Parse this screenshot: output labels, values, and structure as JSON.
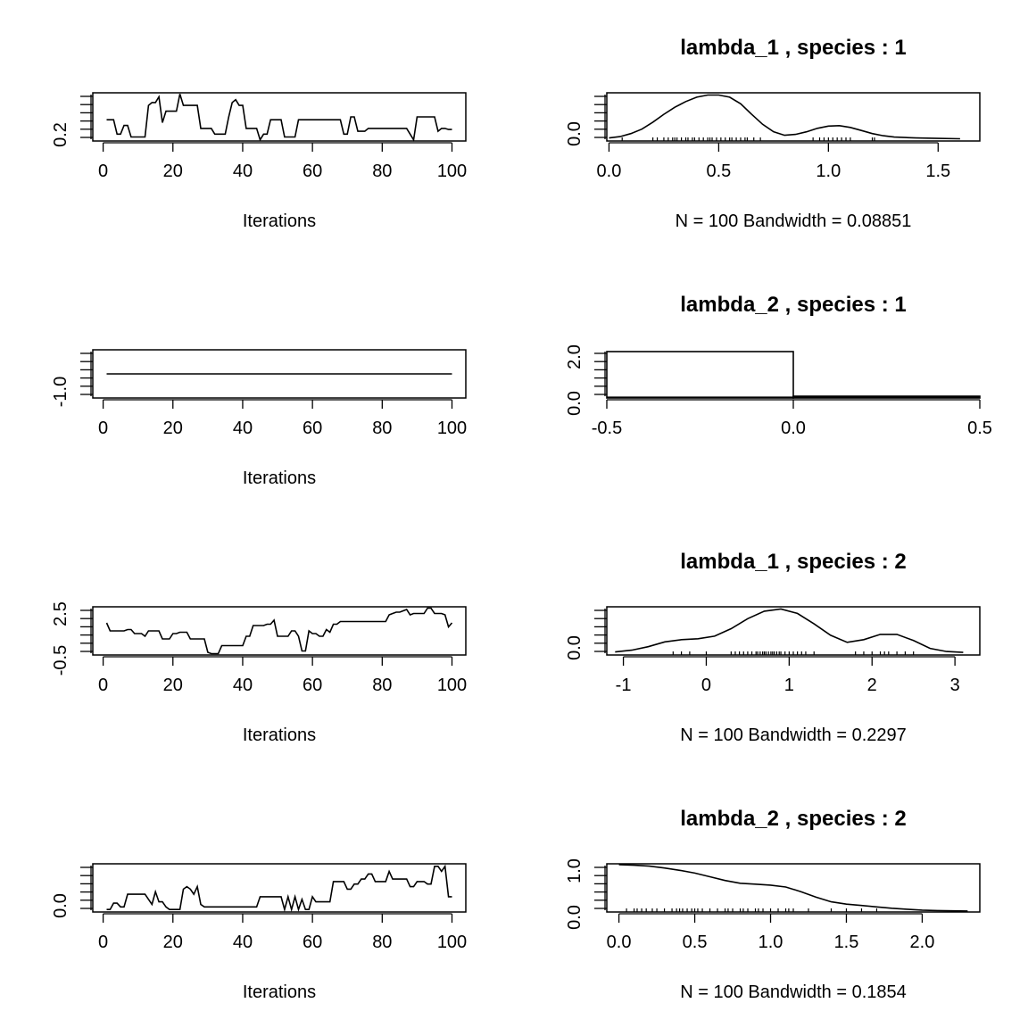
{
  "chart_data": [
    {
      "type": "line",
      "xlabel": "Iterations",
      "x_ticks": [
        0,
        20,
        40,
        60,
        80,
        100
      ],
      "ylim": [
        0.08,
        0.92
      ],
      "y_tick_labels": [
        "0.2"
      ],
      "x": [
        1,
        2,
        3,
        4,
        5,
        6,
        7,
        8,
        9,
        10,
        11,
        12,
        13,
        14,
        15,
        16,
        17,
        18,
        19,
        20,
        21,
        22,
        23,
        24,
        25,
        26,
        27,
        28,
        29,
        30,
        31,
        32,
        33,
        34,
        35,
        36,
        37,
        38,
        39,
        40,
        41,
        42,
        43,
        44,
        45,
        46,
        47,
        48,
        49,
        50,
        51,
        52,
        53,
        54,
        55,
        56,
        57,
        58,
        59,
        60,
        61,
        62,
        63,
        64,
        65,
        66,
        67,
        68,
        69,
        70,
        71,
        72,
        73,
        74,
        75,
        76,
        77,
        78,
        79,
        80,
        81,
        82,
        83,
        84,
        85,
        86,
        87,
        88,
        89,
        90,
        91,
        92,
        93,
        94,
        95,
        96,
        97,
        98,
        99,
        100
      ],
      "values": [
        0.45,
        0.45,
        0.45,
        0.2,
        0.2,
        0.35,
        0.35,
        0.15,
        0.15,
        0.15,
        0.15,
        0.15,
        0.7,
        0.75,
        0.75,
        0.85,
        0.4,
        0.6,
        0.6,
        0.6,
        0.6,
        0.9,
        0.7,
        0.7,
        0.7,
        0.7,
        0.7,
        0.3,
        0.3,
        0.3,
        0.3,
        0.2,
        0.2,
        0.2,
        0.2,
        0.5,
        0.75,
        0.8,
        0.7,
        0.7,
        0.3,
        0.3,
        0.3,
        0.3,
        0.1,
        0.2,
        0.2,
        0.45,
        0.45,
        0.45,
        0.45,
        0.15,
        0.15,
        0.15,
        0.15,
        0.45,
        0.45,
        0.45,
        0.45,
        0.45,
        0.45,
        0.45,
        0.45,
        0.45,
        0.45,
        0.45,
        0.45,
        0.45,
        0.2,
        0.2,
        0.5,
        0.5,
        0.25,
        0.25,
        0.25,
        0.3,
        0.3,
        0.3,
        0.3,
        0.3,
        0.3,
        0.3,
        0.3,
        0.3,
        0.3,
        0.3,
        0.3,
        0.2,
        0.1,
        0.5,
        0.5,
        0.5,
        0.5,
        0.5,
        0.5,
        0.25,
        0.3,
        0.3,
        0.28,
        0.28
      ]
    },
    {
      "type": "line",
      "title": "lambda_1 , species :  1",
      "xlabel": "N = 100   Bandwidth = 0.08851",
      "xlim": [
        -0.01,
        1.69
      ],
      "x_ticks": [
        0.0,
        0.5,
        1.0,
        1.5
      ],
      "x_tick_labels": [
        "0.0",
        "0.5",
        "1.0",
        "1.5"
      ],
      "ylim": [
        -0.05,
        1.05
      ],
      "y_tick_labels": [
        "0.0"
      ],
      "x": [
        0.0,
        0.05,
        0.1,
        0.15,
        0.2,
        0.25,
        0.3,
        0.35,
        0.4,
        0.45,
        0.5,
        0.55,
        0.6,
        0.65,
        0.7,
        0.75,
        0.8,
        0.85,
        0.9,
        0.95,
        1.0,
        1.05,
        1.1,
        1.15,
        1.2,
        1.25,
        1.3,
        1.35,
        1.4,
        1.5,
        1.6
      ],
      "values": [
        0.02,
        0.05,
        0.12,
        0.22,
        0.38,
        0.56,
        0.72,
        0.85,
        0.95,
        1.0,
        1.0,
        0.95,
        0.8,
        0.56,
        0.33,
        0.16,
        0.08,
        0.1,
        0.16,
        0.24,
        0.29,
        0.3,
        0.26,
        0.19,
        0.12,
        0.07,
        0.04,
        0.03,
        0.02,
        0.01,
        0.0
      ],
      "rug": [
        0.06,
        0.2,
        0.22,
        0.25,
        0.27,
        0.29,
        0.3,
        0.31,
        0.33,
        0.35,
        0.36,
        0.38,
        0.39,
        0.41,
        0.43,
        0.45,
        0.46,
        0.47,
        0.49,
        0.51,
        0.53,
        0.55,
        0.56,
        0.58,
        0.6,
        0.62,
        0.63,
        0.66,
        0.69,
        0.93,
        0.96,
        0.98,
        1.0,
        1.02,
        1.04,
        1.06,
        1.08,
        1.1,
        1.2,
        1.21
      ]
    },
    {
      "type": "line",
      "xlabel": "Iterations",
      "x_ticks": [
        0,
        20,
        40,
        60,
        80,
        100
      ],
      "ylim": [
        -1.3,
        -0.7
      ],
      "y_tick_labels": [
        "-1.0"
      ],
      "x": [
        1,
        100
      ],
      "values": [
        -1.0,
        -1.0
      ]
    },
    {
      "type": "bar",
      "title": "lambda_2 , species :  1",
      "xlim": [
        -0.5,
        0.5
      ],
      "x_ticks": [
        -0.5,
        0.0,
        0.5
      ],
      "x_tick_labels": [
        "-0.5",
        "0.0",
        "0.5"
      ],
      "ylim": [
        0,
        2.0
      ],
      "y_tick_labels": [
        "0.0",
        "2.0"
      ],
      "bins": [
        [
          -0.5,
          0.0,
          2.0
        ],
        [
          0.0,
          0.5,
          0.0
        ]
      ]
    },
    {
      "type": "line",
      "xlabel": "Iterations",
      "x_ticks": [
        0,
        20,
        40,
        60,
        80,
        100
      ],
      "ylim": [
        -0.8,
        2.8
      ],
      "y_tick_labels": [
        "-0.5",
        "2.5"
      ],
      "x": [
        1,
        2,
        3,
        4,
        5,
        6,
        7,
        8,
        9,
        10,
        11,
        12,
        13,
        14,
        15,
        16,
        17,
        18,
        19,
        20,
        21,
        22,
        23,
        24,
        25,
        26,
        27,
        28,
        29,
        30,
        31,
        32,
        33,
        34,
        35,
        36,
        37,
        38,
        39,
        40,
        41,
        42,
        43,
        44,
        45,
        46,
        47,
        48,
        49,
        50,
        51,
        52,
        53,
        54,
        55,
        56,
        57,
        58,
        59,
        60,
        61,
        62,
        63,
        64,
        65,
        66,
        67,
        68,
        69,
        70,
        71,
        72,
        73,
        74,
        75,
        76,
        77,
        78,
        79,
        80,
        81,
        82,
        83,
        84,
        85,
        86,
        87,
        88,
        89,
        90,
        91,
        92,
        93,
        94,
        95,
        96,
        97,
        98,
        99,
        100
      ],
      "values": [
        1.6,
        1.0,
        1.0,
        1.0,
        1.0,
        1.0,
        1.1,
        1.1,
        0.8,
        0.8,
        0.8,
        0.6,
        1.0,
        1.0,
        1.0,
        1.0,
        0.4,
        0.4,
        0.4,
        0.8,
        0.8,
        0.9,
        0.9,
        0.9,
        0.4,
        0.4,
        0.4,
        0.4,
        0.4,
        -0.6,
        -0.7,
        -0.7,
        -0.7,
        -0.1,
        -0.1,
        -0.1,
        -0.1,
        -0.1,
        -0.1,
        -0.1,
        0.6,
        0.6,
        1.4,
        1.4,
        1.4,
        1.4,
        1.5,
        1.5,
        1.8,
        0.6,
        0.6,
        0.6,
        0.6,
        1.0,
        1.0,
        0.6,
        -0.5,
        -0.5,
        1.0,
        0.8,
        0.8,
        0.6,
        0.6,
        1.1,
        0.9,
        1.5,
        1.5,
        1.7,
        1.7,
        1.7,
        1.7,
        1.7,
        1.7,
        1.7,
        1.7,
        1.7,
        1.7,
        1.7,
        1.7,
        1.7,
        1.7,
        2.2,
        2.3,
        2.4,
        2.4,
        2.5,
        2.6,
        2.2,
        2.3,
        2.3,
        2.3,
        2.3,
        2.7,
        2.7,
        2.3,
        2.3,
        2.3,
        2.2,
        1.3,
        1.6
      ]
    },
    {
      "type": "line",
      "title": "lambda_1 , species :  2",
      "xlabel": "N = 100   Bandwidth = 0.2297",
      "xlim": [
        -1.2,
        3.3
      ],
      "x_ticks": [
        -1,
        0,
        1,
        2,
        3
      ],
      "x_tick_labels": [
        "-1",
        "0",
        "1",
        "2",
        "3"
      ],
      "ylim": [
        -0.05,
        1.05
      ],
      "y_tick_labels": [
        "0.0"
      ],
      "x": [
        -1.1,
        -0.9,
        -0.7,
        -0.5,
        -0.3,
        -0.1,
        0.1,
        0.3,
        0.5,
        0.7,
        0.9,
        1.1,
        1.3,
        1.5,
        1.7,
        1.9,
        2.1,
        2.3,
        2.5,
        2.7,
        2.9,
        3.1
      ],
      "values": [
        0.02,
        0.06,
        0.14,
        0.25,
        0.3,
        0.32,
        0.38,
        0.55,
        0.78,
        0.95,
        1.0,
        0.9,
        0.66,
        0.4,
        0.24,
        0.3,
        0.42,
        0.42,
        0.28,
        0.1,
        0.03,
        0.01
      ],
      "rug": [
        -0.4,
        -0.3,
        -0.2,
        0.0,
        0.3,
        0.35,
        0.4,
        0.45,
        0.5,
        0.55,
        0.6,
        0.62,
        0.65,
        0.68,
        0.7,
        0.72,
        0.75,
        0.78,
        0.8,
        0.82,
        0.85,
        0.88,
        0.9,
        0.95,
        1.0,
        1.05,
        1.1,
        1.15,
        1.2,
        1.3,
        1.8,
        1.9,
        2.0,
        2.1,
        2.15,
        2.2,
        2.3,
        2.4,
        2.5
      ]
    },
    {
      "type": "line",
      "xlabel": "Iterations",
      "x_ticks": [
        0,
        20,
        40,
        60,
        80,
        100
      ],
      "ylim": [
        -0.1,
        1.8
      ],
      "y_tick_labels": [
        "0.0"
      ],
      "x": [
        1,
        2,
        3,
        4,
        5,
        6,
        7,
        8,
        9,
        10,
        11,
        12,
        13,
        14,
        15,
        16,
        17,
        18,
        19,
        20,
        21,
        22,
        23,
        24,
        25,
        26,
        27,
        28,
        29,
        30,
        31,
        32,
        33,
        34,
        35,
        36,
        37,
        38,
        39,
        40,
        41,
        42,
        43,
        44,
        45,
        46,
        47,
        48,
        49,
        50,
        51,
        52,
        53,
        54,
        55,
        56,
        57,
        58,
        59,
        60,
        61,
        62,
        63,
        64,
        65,
        66,
        67,
        68,
        69,
        70,
        71,
        72,
        73,
        74,
        75,
        76,
        77,
        78,
        79,
        80,
        81,
        82,
        83,
        84,
        85,
        86,
        87,
        88,
        89,
        90,
        91,
        92,
        93,
        94,
        95,
        96,
        97,
        98,
        99,
        100
      ],
      "values": [
        0.0,
        0.0,
        0.25,
        0.25,
        0.1,
        0.1,
        0.6,
        0.6,
        0.6,
        0.6,
        0.6,
        0.6,
        0.4,
        0.2,
        0.7,
        0.3,
        0.3,
        0.1,
        0.0,
        0.0,
        0.0,
        0.0,
        0.8,
        0.9,
        0.8,
        0.6,
        0.9,
        0.2,
        0.1,
        0.1,
        0.1,
        0.1,
        0.1,
        0.1,
        0.1,
        0.1,
        0.1,
        0.1,
        0.1,
        0.1,
        0.1,
        0.1,
        0.1,
        0.1,
        0.5,
        0.5,
        0.5,
        0.5,
        0.5,
        0.5,
        0.5,
        0.0,
        0.5,
        0.0,
        0.5,
        0.0,
        0.4,
        0.0,
        0.0,
        0.5,
        0.3,
        0.3,
        0.3,
        0.3,
        0.3,
        1.1,
        1.1,
        1.1,
        1.1,
        0.8,
        0.8,
        1.0,
        1.0,
        1.2,
        1.2,
        1.4,
        1.4,
        1.1,
        1.1,
        1.1,
        1.1,
        1.5,
        1.2,
        1.2,
        1.2,
        1.2,
        1.2,
        0.9,
        0.9,
        1.1,
        1.1,
        1.1,
        1.0,
        1.0,
        1.7,
        1.7,
        1.5,
        1.7,
        0.5,
        0.5
      ]
    },
    {
      "type": "line",
      "title": "lambda_2 , species :  2",
      "xlabel": "N = 100   Bandwidth = 0.1854",
      "xlim": [
        -0.08,
        2.38
      ],
      "x_ticks": [
        0.0,
        0.5,
        1.0,
        1.5,
        2.0
      ],
      "x_tick_labels": [
        "0.0",
        "0.5",
        "1.0",
        "1.5",
        "2.0"
      ],
      "ylim": [
        -0.02,
        1.02
      ],
      "y_tick_labels": [
        "0.0",
        "1.0"
      ],
      "x": [
        0.0,
        0.1,
        0.2,
        0.3,
        0.4,
        0.5,
        0.6,
        0.7,
        0.8,
        0.9,
        1.0,
        1.1,
        1.2,
        1.3,
        1.4,
        1.5,
        1.6,
        1.7,
        1.8,
        1.9,
        2.0,
        2.1,
        2.2,
        2.3
      ],
      "values": [
        1.0,
        0.99,
        0.97,
        0.93,
        0.88,
        0.82,
        0.74,
        0.66,
        0.6,
        0.58,
        0.56,
        0.52,
        0.42,
        0.3,
        0.2,
        0.15,
        0.12,
        0.09,
        0.06,
        0.04,
        0.02,
        0.01,
        0.005,
        0.002
      ],
      "rug": [
        0.05,
        0.1,
        0.12,
        0.15,
        0.18,
        0.22,
        0.25,
        0.3,
        0.35,
        0.38,
        0.4,
        0.42,
        0.45,
        0.48,
        0.5,
        0.52,
        0.55,
        0.6,
        0.65,
        0.7,
        0.72,
        0.75,
        0.8,
        0.82,
        0.85,
        0.9,
        0.92,
        0.95,
        1.0,
        1.05,
        1.1,
        1.12,
        1.15,
        1.25,
        1.4,
        1.5,
        1.6,
        1.7
      ]
    }
  ]
}
